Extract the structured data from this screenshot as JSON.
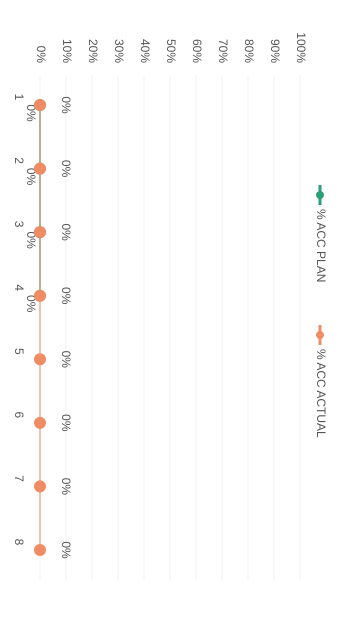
{
  "chart_data": {
    "type": "line",
    "categories": [
      "1",
      "2",
      "3",
      "4",
      "5",
      "6",
      "7",
      "8"
    ],
    "series": [
      {
        "name": "% ACC PLAN",
        "color": "#2e9e78",
        "values": [
          0,
          0,
          0,
          0,
          null,
          null,
          null,
          null
        ],
        "value_labels": [
          "0%",
          "0%",
          "0%",
          "0%",
          null,
          null,
          null,
          null
        ]
      },
      {
        "name": "% ACC ACTUAL",
        "color": "#f08c64",
        "values": [
          0,
          0,
          0,
          0,
          0,
          0,
          0,
          0
        ],
        "value_labels": [
          "0%",
          "0%",
          "0%",
          "0%",
          "0%",
          "0%",
          "0%",
          "0%"
        ]
      }
    ],
    "ylim": [
      0,
      100
    ],
    "yticks": [
      {
        "value": 0,
        "label": "0%"
      },
      {
        "value": 10,
        "label": "10%"
      },
      {
        "value": 20,
        "label": "20%"
      },
      {
        "value": 30,
        "label": "30%"
      },
      {
        "value": 40,
        "label": "40%"
      },
      {
        "value": 50,
        "label": "50%"
      },
      {
        "value": 60,
        "label": "60%"
      },
      {
        "value": 70,
        "label": "70%"
      },
      {
        "value": 80,
        "label": "80%"
      },
      {
        "value": 90,
        "label": "90%"
      },
      {
        "value": 100,
        "label": "100%"
      }
    ],
    "grid": true
  }
}
